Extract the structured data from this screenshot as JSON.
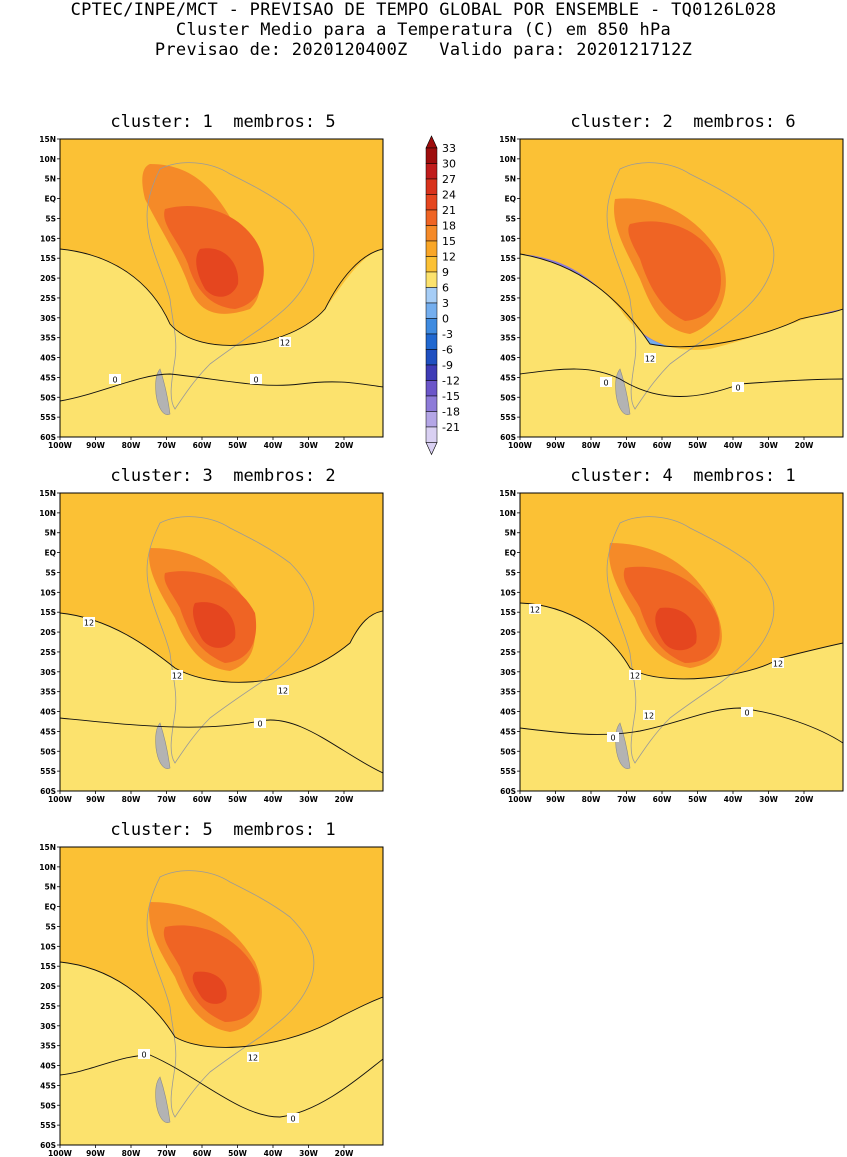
{
  "header": {
    "line1": "CPTEC/INPE/MCT - PREVISAO DE TEMPO GLOBAL POR ENSEMBLE - TQ0126L028",
    "line2": "Cluster Medio para a Temperatura (C) em 850 hPa",
    "line3": "Previsao de: 2020120400Z   Valido para: 2020121712Z"
  },
  "axes": {
    "lat_labels": [
      "15N",
      "10N",
      "5N",
      "EQ",
      "5S",
      "10S",
      "15S",
      "20S",
      "25S",
      "30S",
      "35S",
      "40S",
      "45S",
      "50S",
      "55S",
      "60S"
    ],
    "lon_labels": [
      "100W",
      "90W",
      "80W",
      "70W",
      "60W",
      "50W",
      "40W",
      "30W",
      "20W"
    ]
  },
  "colorbar": {
    "labels": [
      "33",
      "30",
      "27",
      "24",
      "21",
      "18",
      "15",
      "12",
      "9",
      "6",
      "3",
      "0",
      "-3",
      "-6",
      "-9",
      "-12",
      "-15",
      "-18",
      "-21"
    ],
    "colors": [
      "#9e0d0d",
      "#c01c1c",
      "#d8321c",
      "#e5461f",
      "#ef6424",
      "#f58a28",
      "#f9a627",
      "#fbc135",
      "#fce26d",
      "#a6cdf6",
      "#74aeee",
      "#3f8be0",
      "#2168d0",
      "#1f4fc0",
      "#3e3bb6",
      "#6b56c9",
      "#8d7bd8",
      "#b4a6e6",
      "#d9d0f2"
    ]
  },
  "panels": [
    {
      "cluster_label": "cluster:",
      "cluster": "1",
      "members_label": "membros:",
      "members": "5",
      "contours": [
        "12",
        "0",
        "0"
      ]
    },
    {
      "cluster_label": "cluster:",
      "cluster": "2",
      "members_label": "membros:",
      "members": "6",
      "contours": [
        "12",
        "0",
        "0"
      ]
    },
    {
      "cluster_label": "cluster:",
      "cluster": "3",
      "members_label": "membros:",
      "members": "2",
      "contours": [
        "12",
        "12",
        "12",
        "0"
      ]
    },
    {
      "cluster_label": "cluster:",
      "cluster": "4",
      "members_label": "membros:",
      "members": "1",
      "contours": [
        "12",
        "12",
        "12",
        "12",
        "0",
        "0"
      ]
    },
    {
      "cluster_label": "cluster:",
      "cluster": "5",
      "members_label": "membros:",
      "members": "1",
      "contours": [
        "12",
        "0",
        "0"
      ]
    }
  ]
}
